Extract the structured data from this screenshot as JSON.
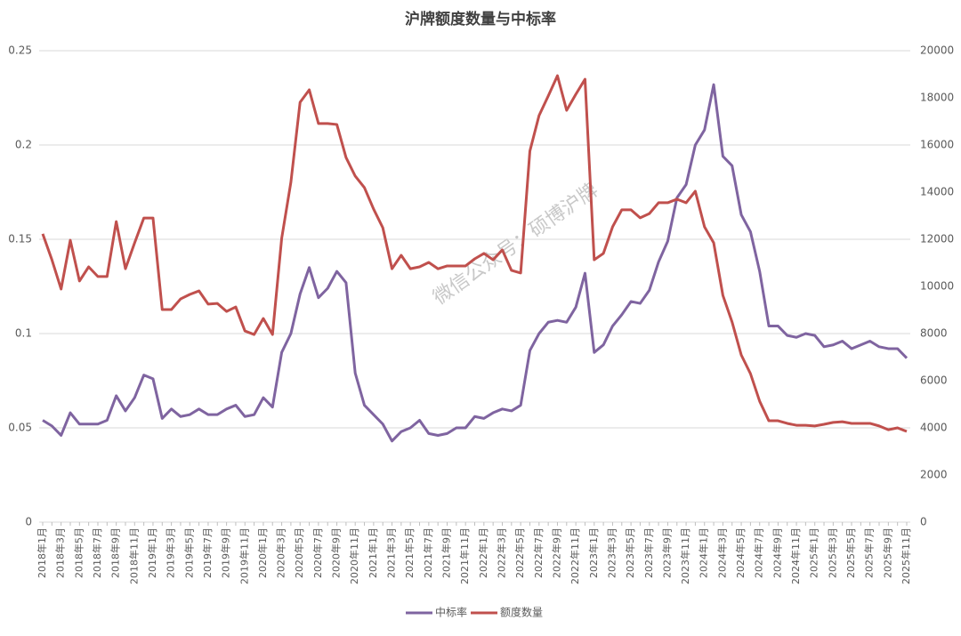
{
  "chart_data": {
    "type": "line",
    "title": "沪牌额度数量与中标率",
    "watermark": "微信公众号：硕博沪牌",
    "categories": [
      "2018年1月",
      null,
      "2018年3月",
      null,
      "2018年5月",
      null,
      "2018年7月",
      null,
      "2018年9月",
      null,
      "2018年11月",
      null,
      "2019年1月",
      null,
      "2019年3月",
      null,
      "2019年5月",
      null,
      "2019年7月",
      null,
      "2019年9月",
      null,
      "2019年11月",
      null,
      "2020年1月",
      null,
      "2020年3月",
      null,
      "2020年5月",
      null,
      "2020年7月",
      null,
      "2020年9月",
      null,
      "2020年11月",
      null,
      "2021年1月",
      null,
      "2021年3月",
      null,
      "2021年5月",
      null,
      "2021年7月",
      null,
      "2021年9月",
      null,
      "2021年11月",
      null,
      "2022年1月",
      null,
      "2022年3月",
      null,
      "2022年5月",
      null,
      "2022年7月",
      null,
      "2022年9月",
      null,
      "2022年11月",
      null,
      "2023年1月",
      null,
      "2023年3月",
      null,
      "2023年5月",
      null,
      "2023年7月",
      null,
      "2023年9月",
      null,
      "2023年11月",
      null,
      "2024年1月",
      null,
      "2024年3月",
      null,
      "2024年5月",
      null,
      "2024年7月",
      null,
      "2024年9月",
      null,
      "2024年11月",
      null,
      "2025年1月",
      null,
      "2025年3月",
      null,
      "2025年5月",
      null,
      "2025年7月",
      null,
      "2025年9月",
      null,
      "2025年11月"
    ],
    "series": [
      {
        "name": "中标率",
        "color": "#7f64a0",
        "axis": "y",
        "values": [
          0.054,
          0.051,
          0.046,
          0.058,
          0.052,
          0.052,
          0.052,
          0.054,
          0.067,
          0.059,
          0.066,
          0.078,
          0.076,
          0.055,
          0.06,
          0.056,
          0.057,
          0.06,
          0.057,
          0.057,
          0.06,
          0.062,
          0.056,
          0.057,
          0.066,
          0.061,
          0.09,
          0.1,
          0.121,
          0.135,
          0.119,
          0.124,
          0.133,
          0.127,
          0.079,
          0.062,
          0.057,
          0.052,
          0.043,
          0.048,
          0.05,
          0.054,
          0.047,
          0.046,
          0.047,
          0.05,
          0.05,
          0.056,
          0.055,
          0.058,
          0.06,
          0.059,
          0.062,
          0.091,
          0.1,
          0.106,
          0.107,
          0.106,
          0.114,
          0.132,
          0.09,
          0.094,
          0.104,
          0.11,
          0.117,
          0.116,
          0.123,
          0.138,
          0.149,
          0.172,
          0.179,
          0.2,
          0.208,
          0.232,
          0.194,
          0.189,
          0.163,
          0.154,
          0.133,
          0.104,
          0.104,
          0.099,
          0.098,
          0.1,
          0.099,
          0.093,
          0.094,
          0.096,
          0.092,
          0.094,
          0.096,
          0.093,
          0.092,
          0.092,
          0.087
        ]
      },
      {
        "name": "额度数量",
        "color": "#c0504d",
        "axis": "y2",
        "values": [
          12230,
          11130,
          9890,
          11960,
          10230,
          10830,
          10420,
          10420,
          12750,
          10750,
          11850,
          12900,
          12900,
          9020,
          9020,
          9470,
          9660,
          9810,
          9250,
          9280,
          8940,
          9130,
          8110,
          7960,
          8640,
          7960,
          12040,
          14420,
          17810,
          18340,
          16910,
          16910,
          16870,
          15470,
          14680,
          14190,
          13280,
          12490,
          10750,
          11320,
          10750,
          10830,
          11020,
          10750,
          10870,
          10870,
          10870,
          11170,
          11400,
          11130,
          11550,
          10680,
          10570,
          15740,
          17250,
          18080,
          18940,
          17470,
          18150,
          18790,
          11130,
          11400,
          12530,
          13250,
          13250,
          12910,
          13090,
          13550,
          13550,
          13700,
          13550,
          14040,
          12530,
          11850,
          9620,
          8490,
          7090,
          6300,
          5130,
          4300,
          4300,
          4190,
          4110,
          4110,
          4080,
          4150,
          4230,
          4260,
          4190,
          4190,
          4190,
          4080,
          3920,
          4000,
          3850
        ]
      }
    ],
    "ylim": [
      0,
      0.25
    ],
    "yticks": [
      0,
      0.05,
      0.1,
      0.15,
      0.2,
      0.25
    ],
    "y2lim": [
      0,
      20000
    ],
    "y2ticks": [
      0,
      2000,
      4000,
      6000,
      8000,
      10000,
      12000,
      14000,
      16000,
      18000,
      20000
    ],
    "grid": true,
    "legend": "bottom"
  }
}
